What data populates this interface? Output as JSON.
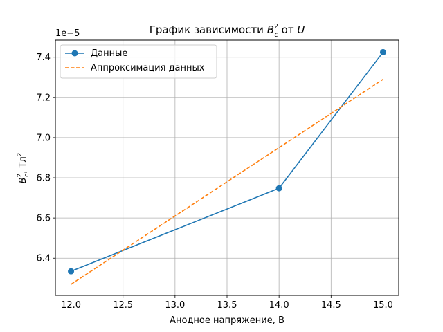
{
  "chart_data": {
    "type": "line",
    "title": "График зависимости B_c^2 от U",
    "title_parts": {
      "prefix": "График зависимости ",
      "symbol": "B",
      "sup": "2",
      "sub": "c",
      "middle": " от ",
      "var": "U"
    },
    "xlabel": "Анодное напряжение, В",
    "ylabel": "B_c^2, Тл^2",
    "ylabel_parts": {
      "symbol": "B",
      "sup": "2",
      "sub": "c",
      "unit": ", Тл",
      "unit_sup": "2"
    },
    "y_offset_text": "1e−5",
    "xlim": [
      11.85,
      15.15
    ],
    "ylim": [
      6.215,
      7.485
    ],
    "x_ticks": [
      12.0,
      12.5,
      13.0,
      13.5,
      14.0,
      14.5,
      15.0
    ],
    "x_tick_labels": [
      "12.0",
      "12.5",
      "13.0",
      "13.5",
      "14.0",
      "14.5",
      "15.0"
    ],
    "y_ticks": [
      6.4,
      6.6,
      6.8,
      7.0,
      7.2,
      7.4
    ],
    "y_tick_labels": [
      "6.4",
      "6.6",
      "6.8",
      "7.0",
      "7.2",
      "7.4"
    ],
    "grid": true,
    "legend_placement": "top-left",
    "series": [
      {
        "name": "Данные",
        "style": "solid-marker",
        "color": "#1f77b4",
        "x": [
          12.0,
          14.0,
          15.0
        ],
        "y": [
          6.335,
          6.748,
          7.425
        ]
      },
      {
        "name": "Аппроксимация данных",
        "style": "dashed",
        "color": "#ff7f0e",
        "x": [
          12.0,
          15.0
        ],
        "y": [
          6.27,
          7.29
        ]
      }
    ]
  }
}
